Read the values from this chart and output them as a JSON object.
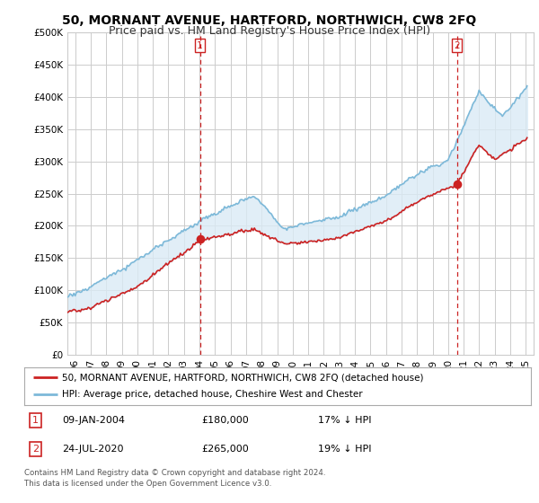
{
  "title": "50, MORNANT AVENUE, HARTFORD, NORTHWICH, CW8 2FQ",
  "subtitle": "Price paid vs. HM Land Registry's House Price Index (HPI)",
  "ylabel_ticks": [
    "£0",
    "£50K",
    "£100K",
    "£150K",
    "£200K",
    "£250K",
    "£300K",
    "£350K",
    "£400K",
    "£450K",
    "£500K"
  ],
  "ylim": [
    0,
    500000
  ],
  "xlim_start": 1995.5,
  "xlim_end": 2025.5,
  "sale1_date": 2004.03,
  "sale1_price": 180000,
  "sale2_date": 2020.56,
  "sale2_price": 265000,
  "hpi_color": "#7db9d9",
  "hpi_fill_color": "#daeaf5",
  "price_color": "#cc2222",
  "vline_color": "#cc2222",
  "background_color": "#ffffff",
  "grid_color": "#cccccc",
  "legend_house": "50, MORNANT AVENUE, HARTFORD, NORTHWICH, CW8 2FQ (detached house)",
  "legend_hpi": "HPI: Average price, detached house, Cheshire West and Chester",
  "footer": "Contains HM Land Registry data © Crown copyright and database right 2024.\nThis data is licensed under the Open Government Licence v3.0.",
  "title_fontsize": 10,
  "subtitle_fontsize": 9
}
